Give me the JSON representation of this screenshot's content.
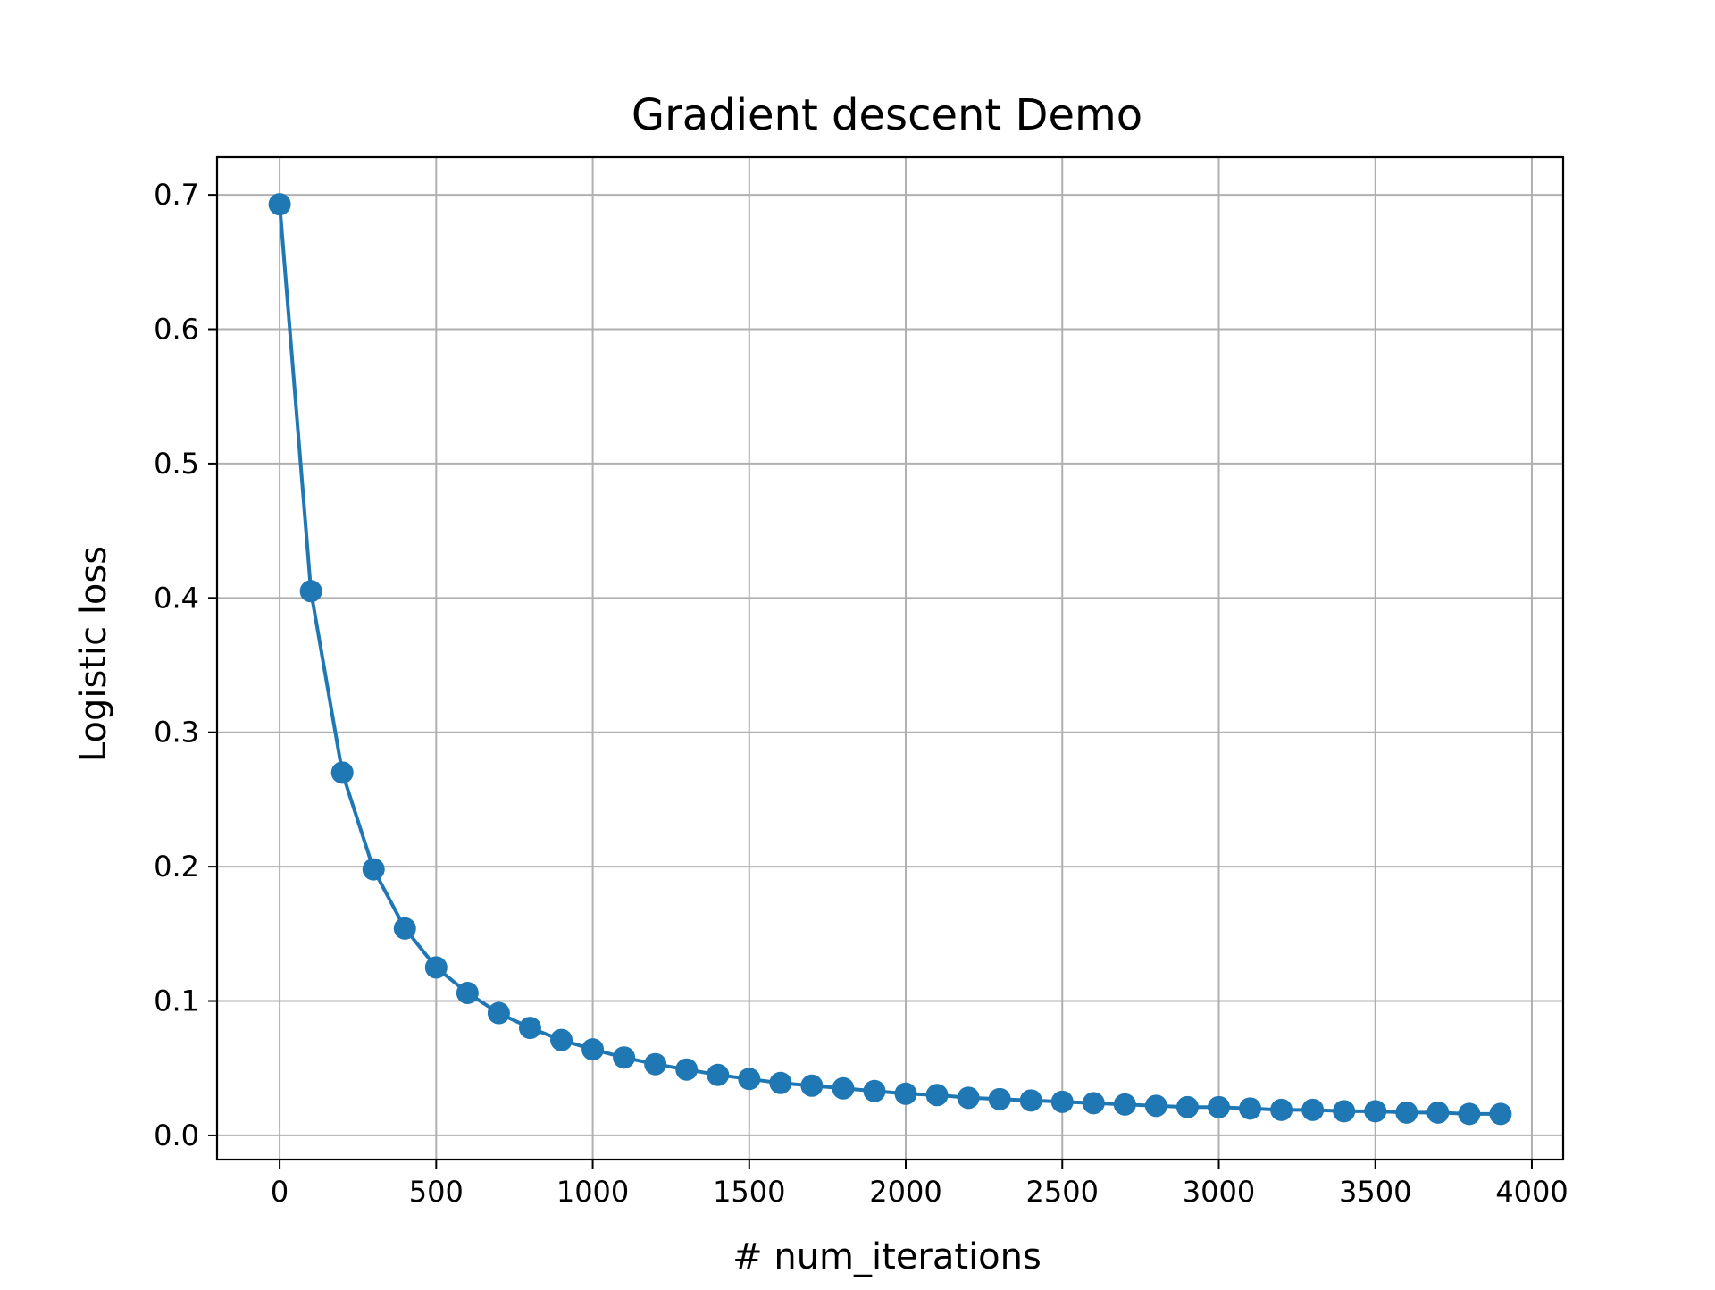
{
  "chart_data": {
    "type": "line",
    "title": "Gradient descent Demo",
    "xlabel": "# num_iterations",
    "ylabel": "Logistic loss",
    "xlim": [
      -200,
      4100
    ],
    "ylim": [
      -0.018,
      0.728
    ],
    "xticks": [
      0,
      500,
      1000,
      1500,
      2000,
      2500,
      3000,
      3500,
      4000
    ],
    "yticks": [
      0.0,
      0.1,
      0.2,
      0.3,
      0.4,
      0.5,
      0.6,
      0.7
    ],
    "xtick_labels": [
      "0",
      "500",
      "1000",
      "1500",
      "2000",
      "2500",
      "3000",
      "3500",
      "4000"
    ],
    "ytick_labels": [
      "0.0",
      "0.1",
      "0.2",
      "0.3",
      "0.4",
      "0.5",
      "0.6",
      "0.7"
    ],
    "grid": true,
    "line_color": "#1f77b4",
    "marker": "circle",
    "series": [
      {
        "x": [
          0,
          100,
          200,
          300,
          400,
          500,
          600,
          700,
          800,
          900,
          1000,
          1100,
          1200,
          1300,
          1400,
          1500,
          1600,
          1700,
          1800,
          1900,
          2000,
          2100,
          2200,
          2300,
          2400,
          2500,
          2600,
          2700,
          2800,
          2900,
          3000,
          3100,
          3200,
          3300,
          3400,
          3500,
          3600,
          3700,
          3800,
          3900
        ],
        "y": [
          0.693,
          0.405,
          0.27,
          0.198,
          0.154,
          0.125,
          0.106,
          0.091,
          0.08,
          0.071,
          0.064,
          0.058,
          0.053,
          0.049,
          0.045,
          0.042,
          0.039,
          0.037,
          0.035,
          0.033,
          0.031,
          0.03,
          0.028,
          0.027,
          0.026,
          0.025,
          0.024,
          0.023,
          0.022,
          0.021,
          0.021,
          0.02,
          0.019,
          0.019,
          0.018,
          0.018,
          0.017,
          0.017,
          0.016,
          0.016
        ]
      }
    ]
  }
}
